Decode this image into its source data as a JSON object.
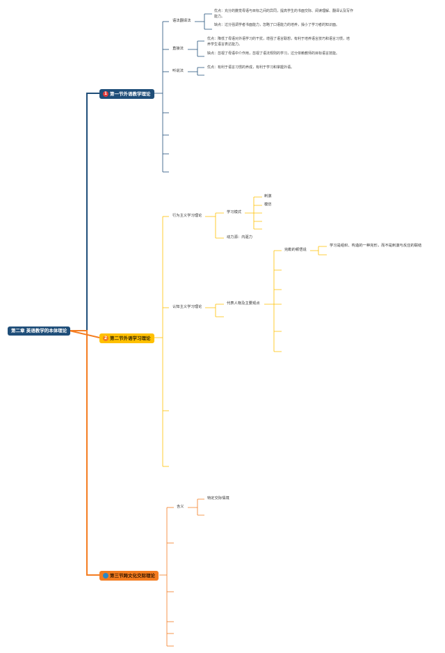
{
  "colors": {
    "section1": "#1f4e79",
    "section2": "#ffc000",
    "section3": "#f47c20",
    "root": "#1f4e79"
  },
  "root": {
    "label": "第二章 英语教学的本体理论"
  },
  "section1": {
    "badge": "1",
    "label": "第一节外语教学理论",
    "branches": [
      {
        "label": "语法翻译法",
        "pros": "优点：充分的撒觉母语与目标之间的异同，提高学生的书面交际、阅读理解、翻译认及写作能力。",
        "cons": "缺点：过分强调学者书面能力，忽略了口语能力的培养，操小了学习者的知识面。"
      },
      {
        "label": "直接法",
        "pros": "优点：降低了母语对外语学习的干扰，增强了语言联想，有利于培养语言技巧和语言习惯，培养学生语言表达能力。",
        "cons": "缺点：忽视了母语中介作用，忽视了语法规则的学习，过分依赖教师的目标语言技能。"
      },
      {
        "label": "听说法",
        "pros": "优点：有利于语言习惯的养成，有利于学习和掌握外语。"
      }
    ]
  },
  "section2": {
    "badge": "2",
    "label": "第二节外语学习理论",
    "behaviorism": {
      "label": "行为主义学习理论",
      "mode": "学习模式",
      "mode_items": [
        "刺激",
        "模仿"
      ],
      "drive": "动力源：内驱力"
    },
    "cognitivism": {
      "label": "认知主义学习理论",
      "reps": "代表人物及主要观点",
      "gestalt": "完勒的顿悟说",
      "gestalt_note": "学习是组织、构造的一种完形，而不是刺激与反应的联结"
    }
  },
  "section3": {
    "label": "第三节跨文化交际理论",
    "meaning": "含义",
    "meaning_item": "特定交际情境"
  }
}
